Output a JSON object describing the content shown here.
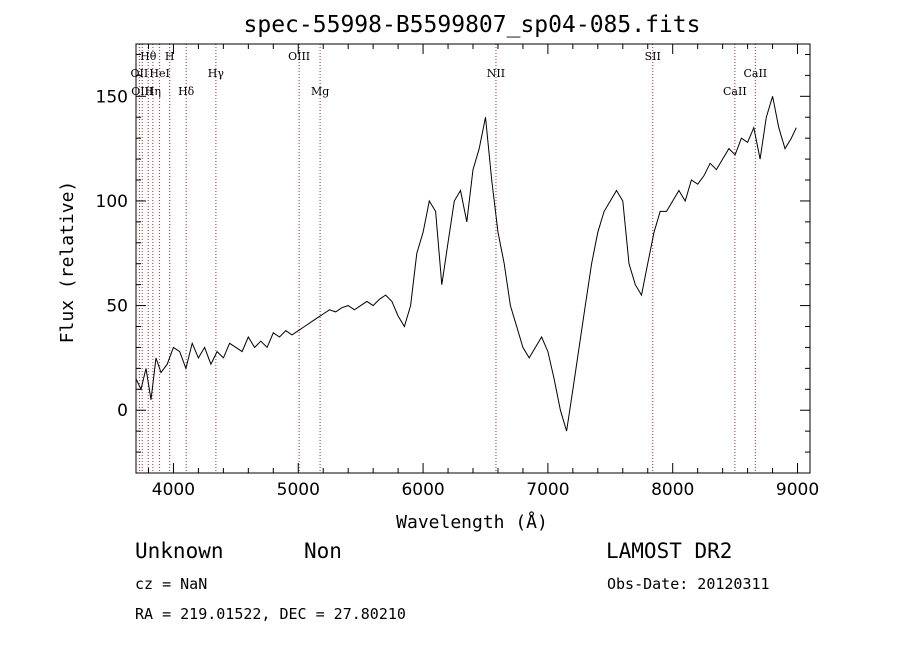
{
  "chart_data": {
    "type": "line",
    "title": "spec-55998-B5599807_sp04-085.fits",
    "xlabel": "Wavelength (Å)",
    "ylabel": "Flux (relative)",
    "xlim": [
      3700,
      9100
    ],
    "ylim": [
      -30,
      175
    ],
    "xticks": [
      4000,
      5000,
      6000,
      7000,
      8000,
      9000
    ],
    "yticks": [
      0,
      50,
      100,
      150
    ],
    "grid": false,
    "line_color": "#000000",
    "marker_color": "#a0322d",
    "series": [
      {
        "x": [
          3700,
          3740,
          3780,
          3820,
          3860,
          3900,
          3950,
          4000,
          4050,
          4100,
          4150,
          4200,
          4250,
          4300,
          4350,
          4400,
          4450,
          4500,
          4550,
          4600,
          4650,
          4700,
          4750,
          4800,
          4850,
          4900,
          4950,
          5000,
          5050,
          5100,
          5150,
          5200,
          5250,
          5300,
          5350,
          5400,
          5450,
          5500,
          5550,
          5600,
          5650,
          5700,
          5750,
          5800,
          5850,
          5900,
          5950,
          6000,
          6050,
          6100,
          6150,
          6200,
          6250,
          6300,
          6350,
          6400,
          6450,
          6500,
          6550,
          6600,
          6650,
          6700,
          6750,
          6800,
          6850,
          6900,
          6950,
          7000,
          7050,
          7100,
          7150,
          7200,
          7250,
          7300,
          7350,
          7400,
          7450,
          7500,
          7550,
          7600,
          7650,
          7700,
          7750,
          7800,
          7850,
          7900,
          7950,
          8000,
          8050,
          8100,
          8150,
          8200,
          8250,
          8300,
          8350,
          8400,
          8450,
          8500,
          8550,
          8600,
          8650,
          8700,
          8750,
          8800,
          8850,
          8900,
          8950,
          8990
        ],
        "y": [
          15,
          10,
          20,
          5,
          25,
          18,
          22,
          30,
          28,
          20,
          32,
          25,
          30,
          22,
          28,
          25,
          32,
          30,
          28,
          35,
          30,
          33,
          30,
          37,
          35,
          38,
          36,
          38,
          40,
          42,
          44,
          46,
          48,
          47,
          49,
          50,
          48,
          50,
          52,
          50,
          53,
          55,
          52,
          45,
          40,
          50,
          75,
          85,
          100,
          95,
          60,
          80,
          100,
          105,
          90,
          115,
          125,
          140,
          110,
          85,
          70,
          50,
          40,
          30,
          25,
          30,
          35,
          28,
          15,
          0,
          -10,
          10,
          30,
          50,
          70,
          85,
          95,
          100,
          105,
          100,
          70,
          60,
          55,
          70,
          85,
          95,
          95,
          100,
          105,
          100,
          110,
          108,
          112,
          118,
          115,
          120,
          125,
          122,
          130,
          128,
          135,
          120,
          140,
          150,
          135,
          125,
          130,
          135
        ]
      }
    ],
    "line_markers": [
      {
        "label": "Hθ",
        "x": 3798,
        "row": 0
      },
      {
        "label": "H",
        "x": 3970,
        "row": 0
      },
      {
        "label": "OIII",
        "x": 5007,
        "row": 0
      },
      {
        "label": "SII",
        "x": 7840,
        "row": 0
      },
      {
        "label": "OII",
        "x": 3727,
        "row": 1
      },
      {
        "label": "HeI",
        "x": 3889,
        "row": 1
      },
      {
        "label": "Hγ",
        "x": 4340,
        "row": 1
      },
      {
        "label": "NII",
        "x": 6584,
        "row": 1
      },
      {
        "label": "CaII",
        "x": 8662,
        "row": 1
      },
      {
        "label": "OIII",
        "x": 3750,
        "row": 2
      },
      {
        "label": "Hη",
        "x": 3835,
        "row": 2
      },
      {
        "label": "Hδ",
        "x": 4102,
        "row": 2
      },
      {
        "label": "Mg",
        "x": 5175,
        "row": 2
      },
      {
        "label": "CaII",
        "x": 8498,
        "row": 2
      }
    ]
  },
  "info": {
    "class": "Unknown",
    "subclass": "Non",
    "survey": "LAMOST DR2",
    "cz": "cz = NaN",
    "obs_date": "Obs-Date: 20120311",
    "coords": "RA = 219.01522, DEC =  27.80210"
  }
}
